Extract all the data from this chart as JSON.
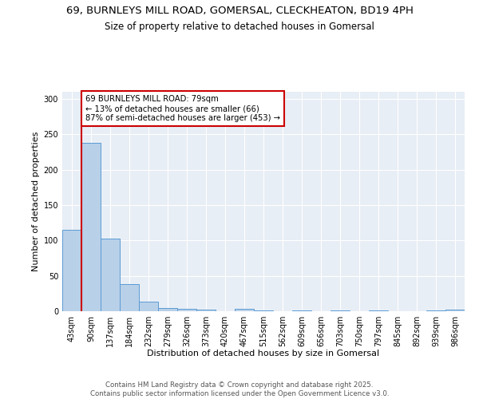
{
  "title1": "69, BURNLEYS MILL ROAD, GOMERSAL, CLECKHEATON, BD19 4PH",
  "title2": "Size of property relative to detached houses in Gomersal",
  "xlabel": "Distribution of detached houses by size in Gomersal",
  "ylabel": "Number of detached properties",
  "categories": [
    "43sqm",
    "90sqm",
    "137sqm",
    "184sqm",
    "232sqm",
    "279sqm",
    "326sqm",
    "373sqm",
    "420sqm",
    "467sqm",
    "515sqm",
    "562sqm",
    "609sqm",
    "656sqm",
    "703sqm",
    "750sqm",
    "797sqm",
    "845sqm",
    "892sqm",
    "939sqm",
    "986sqm"
  ],
  "values": [
    115,
    238,
    103,
    38,
    14,
    5,
    3,
    2,
    0,
    3,
    1,
    0,
    1,
    0,
    1,
    0,
    1,
    0,
    0,
    1,
    2
  ],
  "bar_color": "#b8d0e8",
  "bar_edge_color": "#5b9bd5",
  "highlight_line_color": "#cc0000",
  "annotation_text": "69 BURNLEYS MILL ROAD: 79sqm\n← 13% of detached houses are smaller (66)\n87% of semi-detached houses are larger (453) →",
  "annotation_box_color": "#ffffff",
  "annotation_border_color": "#cc0000",
  "ylim": [
    0,
    310
  ],
  "yticks": [
    0,
    50,
    100,
    150,
    200,
    250,
    300
  ],
  "background_color": "#e8eef5",
  "footnote": "Contains HM Land Registry data © Crown copyright and database right 2025.\nContains public sector information licensed under the Open Government Licence v3.0.",
  "title1_fontsize": 9.5,
  "title2_fontsize": 8.5,
  "axis_fontsize": 8,
  "tick_fontsize": 7
}
